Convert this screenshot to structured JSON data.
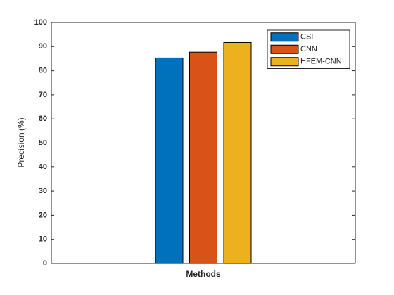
{
  "chart_data": {
    "type": "bar",
    "x_label": "Methods",
    "y_label": "Precision (%)",
    "categories": [
      null
    ],
    "series": [
      {
        "name": "CSI",
        "color": "#0072bd",
        "values": [
          85.3
        ]
      },
      {
        "name": "CNN",
        "color": "#d95319",
        "values": [
          87.7
        ]
      },
      {
        "name": "HFEM-CNN",
        "color": "#edb120",
        "values": [
          91.7
        ]
      }
    ],
    "ylim": [
      0,
      100
    ],
    "yticks": [
      0,
      10,
      20,
      30,
      40,
      50,
      60,
      70,
      80,
      90,
      100
    ],
    "legend": "top-right"
  }
}
